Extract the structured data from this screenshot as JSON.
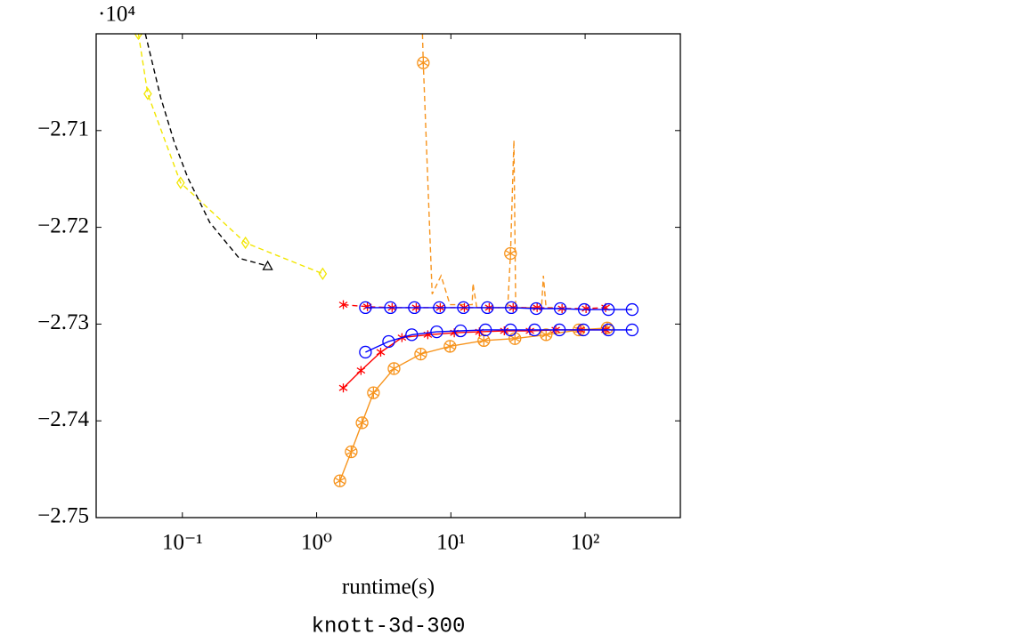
{
  "chart_data": {
    "type": "line",
    "log_x": true,
    "xlabel": "runtime(s)",
    "caption": "knott-3d-300",
    "y_multiplier": "·10⁴",
    "xlim": [
      0.0228,
      512
    ],
    "ylim": [
      -2.75,
      -2.7
    ],
    "xticks": [
      {
        "value": 0.1,
        "label": "10⁻¹"
      },
      {
        "value": 1,
        "label": "10⁰"
      },
      {
        "value": 10,
        "label": "10¹"
      },
      {
        "value": 100,
        "label": "10²"
      }
    ],
    "yticks": [
      {
        "value": -2.75,
        "label": "−2.75"
      },
      {
        "value": -2.74,
        "label": "−2.74"
      },
      {
        "value": -2.73,
        "label": "−2.73"
      },
      {
        "value": -2.72,
        "label": "−2.72"
      },
      {
        "value": -2.71,
        "label": "−2.71"
      }
    ],
    "series": [
      {
        "color": "#f2e600",
        "dash": true,
        "marker": "diamond",
        "line": true,
        "x": [
          0.047,
          0.0552,
          0.097,
          0.295,
          1.11
        ],
        "values": [
          -2.7,
          -2.7062,
          -2.7154,
          -2.7216,
          -2.7248
        ]
      },
      {
        "color": "#000000",
        "dash": true,
        "marker": "none",
        "line": true,
        "x": [
          0.053,
          0.069,
          0.087,
          0.11,
          0.16,
          0.265,
          0.432
        ],
        "values": [
          -2.7,
          -2.7066,
          -2.7112,
          -2.7149,
          -2.7195,
          -2.7232,
          -2.724
        ]
      },
      {
        "color": "#000000",
        "dash": false,
        "marker": "triangle",
        "line": false,
        "x": [
          0.432
        ],
        "values": [
          -2.724
        ]
      },
      {
        "color": "#f7941d",
        "dash": true,
        "marker": "none",
        "line": true,
        "x": [
          6.14,
          6.23,
          7.26,
          8.45,
          9.85,
          14.4,
          14.6,
          15.6,
          26.5,
          27.8,
          29.5,
          30.4,
          47.3,
          48.9,
          51.2,
          58.6
        ],
        "values": [
          -2.7,
          -2.703,
          -2.7269,
          -2.725,
          -2.728,
          -2.728,
          -2.7258,
          -2.7283,
          -2.7283,
          -2.7227,
          -2.711,
          -2.7283,
          -2.7283,
          -2.725,
          -2.7283,
          -2.7283
        ]
      },
      {
        "color": "#f7941d",
        "dash": false,
        "marker": "circle-star",
        "line": false,
        "x": [
          6.23,
          27.8
        ],
        "values": [
          -2.703,
          -2.7227
        ]
      },
      {
        "color": "#f7941d",
        "dash": false,
        "marker": "circle-star",
        "line": true,
        "x": [
          1.49,
          1.81,
          2.18,
          2.65,
          3.77,
          5.96,
          9.85,
          17.6,
          30.0,
          51.2,
          89.9,
          146
        ],
        "values": [
          -2.7462,
          -2.7432,
          -2.7402,
          -2.7371,
          -2.7346,
          -2.7331,
          -2.7323,
          -2.7317,
          -2.7315,
          -2.7311,
          -2.7306,
          -2.7304
        ]
      },
      {
        "color": "#ff0000",
        "dash": true,
        "marker": "star",
        "line": true,
        "x": [
          1.58,
          2.39,
          3.65,
          5.52,
          8.33,
          12.6,
          19.3,
          29.1,
          43.9,
          67.3,
          101.6,
          142
        ],
        "values": [
          -2.728,
          -2.7282,
          -2.7283,
          -2.7283,
          -2.7283,
          -2.7283,
          -2.7283,
          -2.7283,
          -2.7283,
          -2.7284,
          -2.7284,
          -2.7283
        ]
      },
      {
        "color": "#ff0000",
        "dash": false,
        "marker": "star",
        "line": true,
        "x": [
          1.58,
          2.14,
          3.0,
          4.32,
          6.73,
          10.6,
          16.3,
          25.0,
          38.8,
          60.4,
          92.7,
          142
        ],
        "values": [
          -2.7366,
          -2.7348,
          -2.7329,
          -2.7314,
          -2.7311,
          -2.7309,
          -2.7308,
          -2.7307,
          -2.7307,
          -2.7306,
          -2.7306,
          -2.7306
        ]
      },
      {
        "color": "#0000ff",
        "dash": false,
        "marker": "circle",
        "line": true,
        "x": [
          2.31,
          3.55,
          5.35,
          8.2,
          12.4,
          18.7,
          28.2,
          43.2,
          65.3,
          98.5,
          149,
          224
        ],
        "values": [
          -2.7283,
          -2.7283,
          -2.7283,
          -2.7283,
          -2.7283,
          -2.7283,
          -2.7283,
          -2.7284,
          -2.7284,
          -2.7285,
          -2.7285,
          -2.7285
        ]
      },
      {
        "color": "#0000ff",
        "dash": false,
        "marker": "circle",
        "line": true,
        "x": [
          2.31,
          3.44,
          5.11,
          7.84,
          11.8,
          18.1,
          27.8,
          42.0,
          64.3,
          97.0,
          149,
          224
        ],
        "values": [
          -2.7329,
          -2.7318,
          -2.7311,
          -2.7308,
          -2.7307,
          -2.7306,
          -2.7306,
          -2.7306,
          -2.7306,
          -2.7306,
          -2.7306,
          -2.7306
        ]
      }
    ]
  }
}
